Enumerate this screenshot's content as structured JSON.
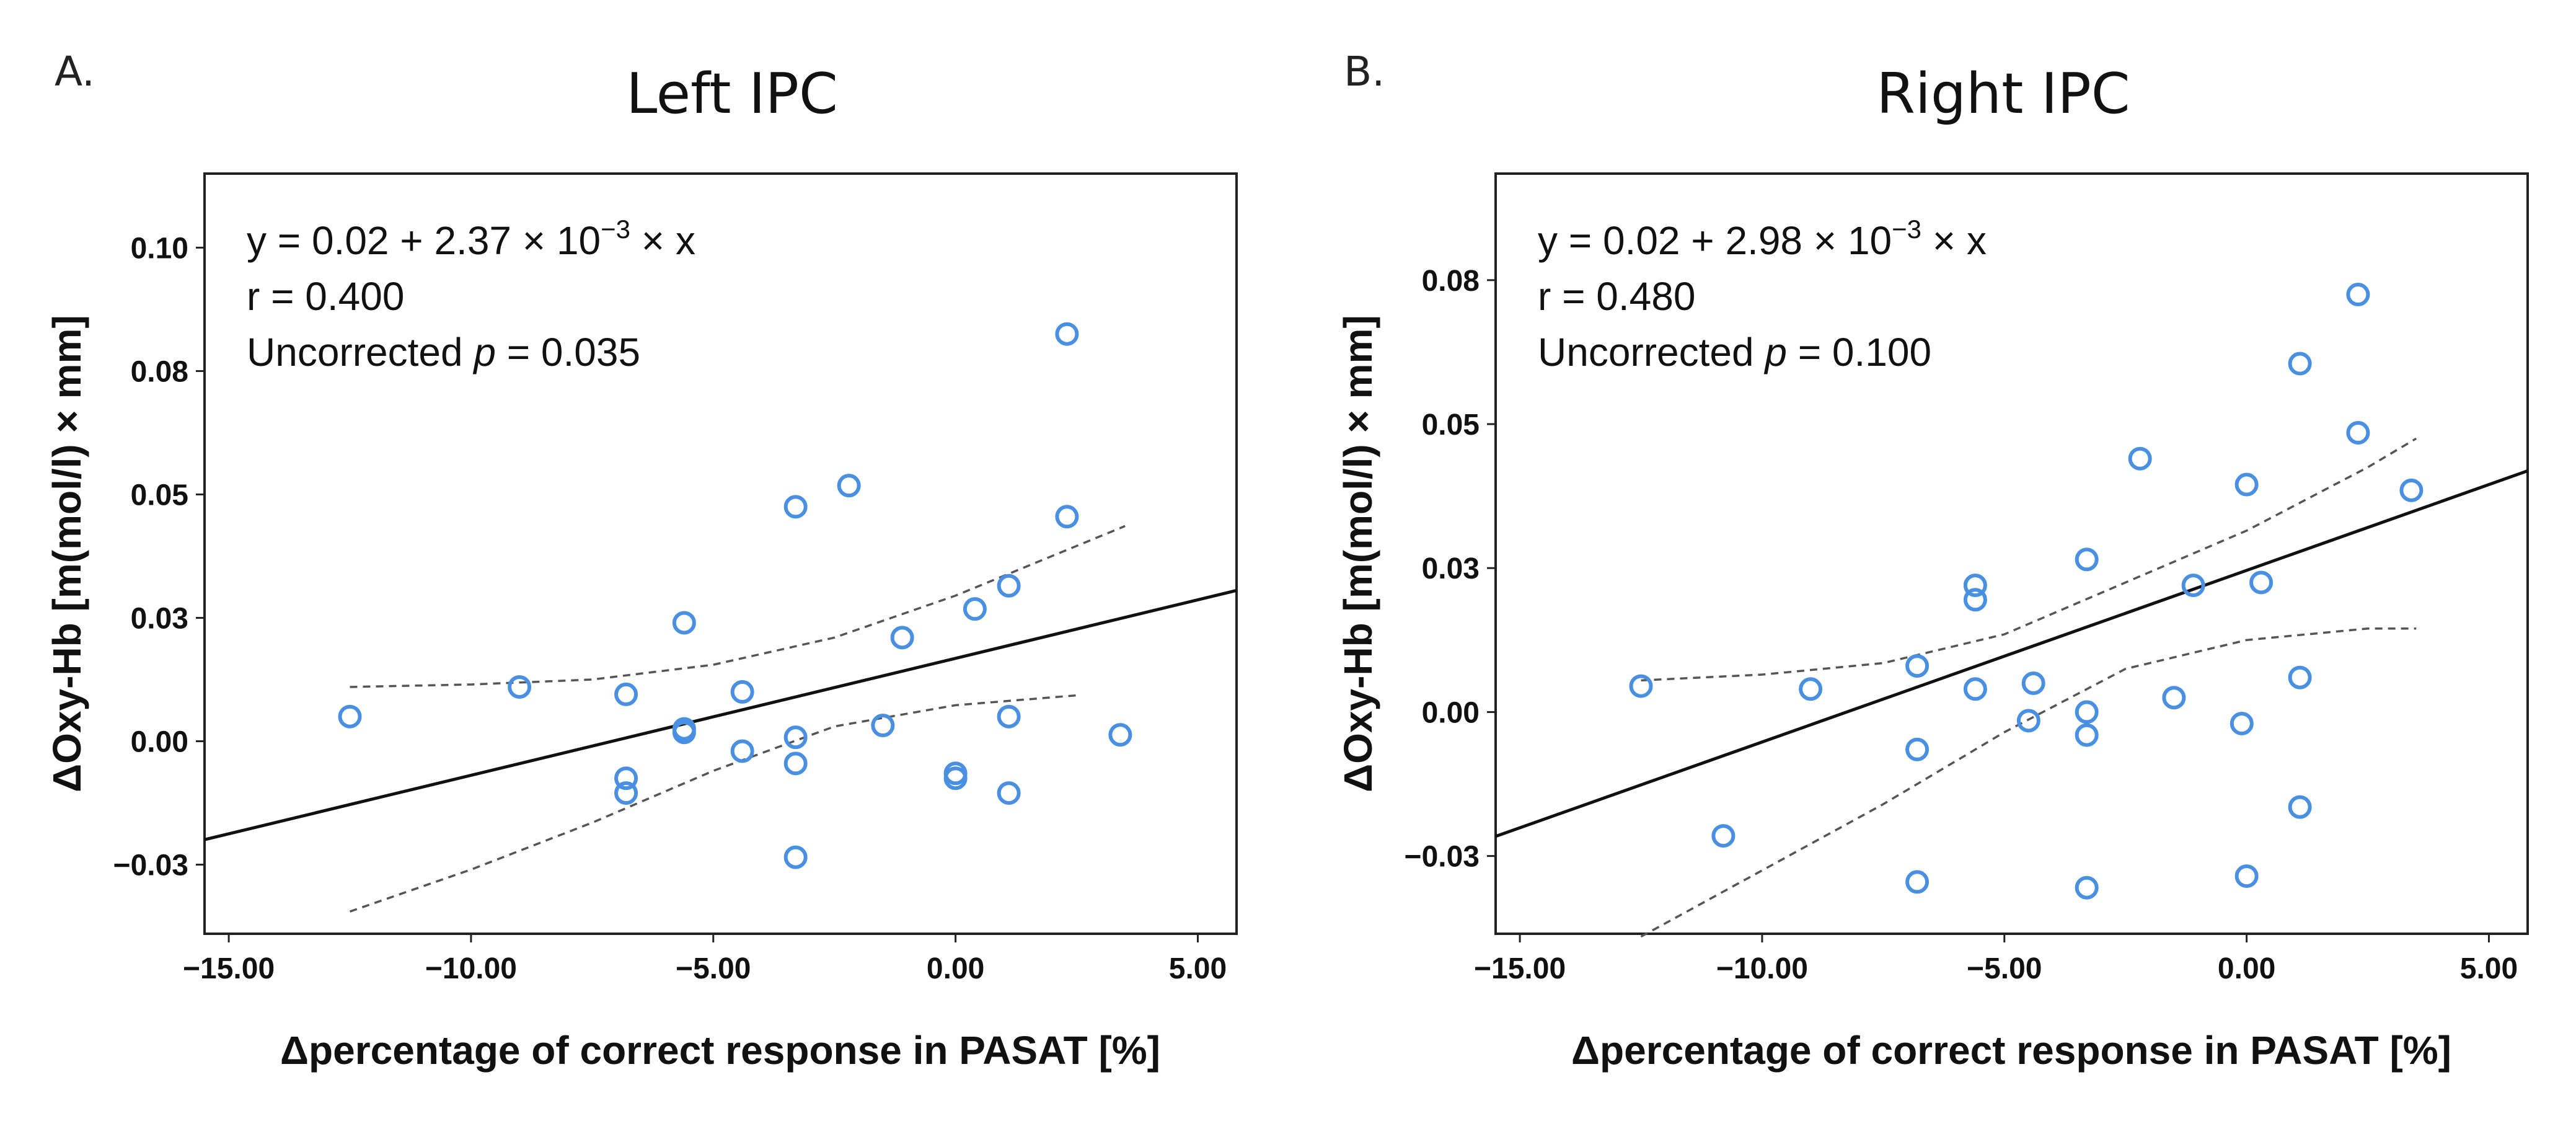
{
  "chart_data": [
    {
      "type": "scatter",
      "panel_letter": "A.",
      "title": "Left IPC",
      "xlabel": "Δpercentage of correct response in PASAT [%]",
      "ylabel": "ΔOxy-Hb [m(mol/l) × mm]",
      "xlim": [
        -15.5,
        5.8
      ],
      "ylim": [
        -0.039,
        0.115
      ],
      "x_ticks": [
        -15,
        -10,
        -5,
        0,
        5
      ],
      "x_tick_labels": [
        "−15.00",
        "−10.00",
        "−5.00",
        "0.00",
        "5.00"
      ],
      "y_ticks": [
        -0.025,
        0.0,
        0.025,
        0.05,
        0.075,
        0.1
      ],
      "y_tick_labels": [
        "−0.03",
        "0.00",
        "0.03",
        "0.05",
        "0.08",
        "0.10"
      ],
      "annotation": {
        "equation": "y = 0.02 + 2.37 × 10",
        "exponent": "−3",
        "equation_tail": " × x",
        "r": "r = 0.400",
        "p_prefix": "Uncorrected ",
        "p_symbol": "p",
        "p_value": " = 0.035"
      },
      "fit": {
        "intercept": 0.0168,
        "slope": 0.00237
      },
      "ci_lower": [
        [
          -12.5,
          -0.0345
        ],
        [
          -10,
          -0.026
        ],
        [
          -7.5,
          -0.0165
        ],
        [
          -5,
          -0.006
        ],
        [
          -2.5,
          0.003
        ],
        [
          0,
          0.0073
        ],
        [
          2.5,
          0.0093
        ]
      ],
      "ci_upper": [
        [
          -12.5,
          0.011
        ],
        [
          -10,
          0.0115
        ],
        [
          -7.5,
          0.0125
        ],
        [
          -5,
          0.0155
        ],
        [
          -2.5,
          0.021
        ],
        [
          0,
          0.0295
        ],
        [
          3.5,
          0.0436
        ]
      ],
      "points": {
        "x": [
          -12.5,
          -9.0,
          -6.8,
          -6.8,
          -6.8,
          -5.6,
          -5.6,
          -5.6,
          -4.4,
          -4.4,
          -3.3,
          -3.3,
          -3.3,
          -3.3,
          -2.2,
          -1.5,
          -1.1,
          0.0,
          0.0,
          0.4,
          1.1,
          1.1,
          1.1,
          2.3,
          2.3,
          3.4
        ],
        "y": [
          0.005,
          0.011,
          0.0095,
          -0.0075,
          -0.0105,
          0.024,
          0.0025,
          0.0018,
          -0.002,
          0.01,
          0.0475,
          0.0008,
          -0.0045,
          -0.0235,
          0.0518,
          0.0032,
          0.021,
          -0.0065,
          -0.0075,
          0.0268,
          0.005,
          0.0315,
          -0.0105,
          0.0455,
          0.0825,
          0.0013
        ]
      }
    },
    {
      "type": "scatter",
      "panel_letter": "B.",
      "title": "Right IPC",
      "xlabel": "Δpercentage of correct response in PASAT [%]",
      "ylabel": "ΔOxy-Hb [m(mol/l) × mm]",
      "xlim": [
        -15.5,
        5.8
      ],
      "ylim": [
        -0.0385,
        0.0935
      ],
      "x_ticks": [
        -15,
        -10,
        -5,
        0,
        5
      ],
      "x_tick_labels": [
        "−15.00",
        "−10.00",
        "−5.00",
        "0.00",
        "5.00"
      ],
      "y_ticks": [
        -0.025,
        0.0,
        0.025,
        0.05,
        0.075
      ],
      "y_tick_labels": [
        "−0.03",
        "0.00",
        "0.03",
        "0.05",
        "0.08"
      ],
      "annotation": {
        "equation": "y = 0.02 + 2.98 × 10",
        "exponent": "−3",
        "equation_tail": " × x",
        "r": "r = 0.480",
        "p_prefix": "Uncorrected ",
        "p_symbol": "p",
        "p_value": " = 0.100"
      },
      "fit": {
        "intercept": 0.0246,
        "slope": 0.00298
      },
      "ci_lower": [
        [
          -12.5,
          -0.039
        ],
        [
          -10,
          -0.0275
        ],
        [
          -7.5,
          -0.016
        ],
        [
          -5,
          -0.0035
        ],
        [
          -2.5,
          0.0075
        ],
        [
          0,
          0.0125
        ],
        [
          2.5,
          0.0145
        ],
        [
          3.5,
          0.0145
        ]
      ],
      "ci_upper": [
        [
          -12.5,
          0.0055
        ],
        [
          -10,
          0.0065
        ],
        [
          -7.5,
          0.0085
        ],
        [
          -5,
          0.0135
        ],
        [
          -2.5,
          0.0225
        ],
        [
          0,
          0.0315
        ],
        [
          2.5,
          0.0425
        ],
        [
          3.5,
          0.0475
        ]
      ],
      "points": {
        "x": [
          -12.5,
          -10.8,
          -9.0,
          -6.8,
          -6.8,
          -6.8,
          -5.6,
          -5.6,
          -5.6,
          -4.5,
          -4.4,
          -3.3,
          -3.3,
          -3.3,
          -3.3,
          -2.2,
          -1.5,
          -1.1,
          -0.1,
          0.0,
          0.0,
          0.3,
          1.1,
          1.1,
          1.1,
          2.3,
          2.3,
          3.4
        ],
        "y": [
          0.0045,
          -0.0215,
          0.004,
          0.008,
          -0.0065,
          -0.0295,
          0.022,
          0.0195,
          0.004,
          -0.0015,
          0.005,
          0.0265,
          0.0,
          -0.004,
          -0.0305,
          0.044,
          0.0025,
          0.022,
          -0.002,
          -0.0285,
          0.0395,
          0.0225,
          0.006,
          -0.0165,
          0.0605,
          0.0485,
          0.0725,
          0.0385
        ]
      }
    }
  ]
}
